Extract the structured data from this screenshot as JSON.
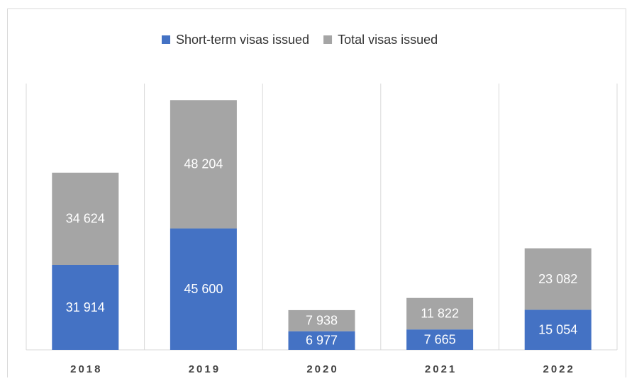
{
  "chart_data": {
    "type": "bar",
    "stacked": true,
    "categories": [
      "2018",
      "2019",
      "2020",
      "2021",
      "2022"
    ],
    "series": [
      {
        "name": "Short-term visas issued",
        "color": "#4472c4",
        "values": [
          31914,
          45600,
          6977,
          7665,
          15054
        ],
        "value_labels": [
          "31 914",
          "45 600",
          "6 977",
          "7 665",
          "15 054"
        ]
      },
      {
        "name": "Total visas issued",
        "color": "#a5a5a5",
        "values": [
          34624,
          48204,
          7938,
          11822,
          23082
        ],
        "value_labels": [
          "34 624",
          "48 204",
          "7 938",
          "11 822",
          "23 082"
        ]
      }
    ],
    "ylim": [
      0,
      100000
    ],
    "legend": "top"
  }
}
